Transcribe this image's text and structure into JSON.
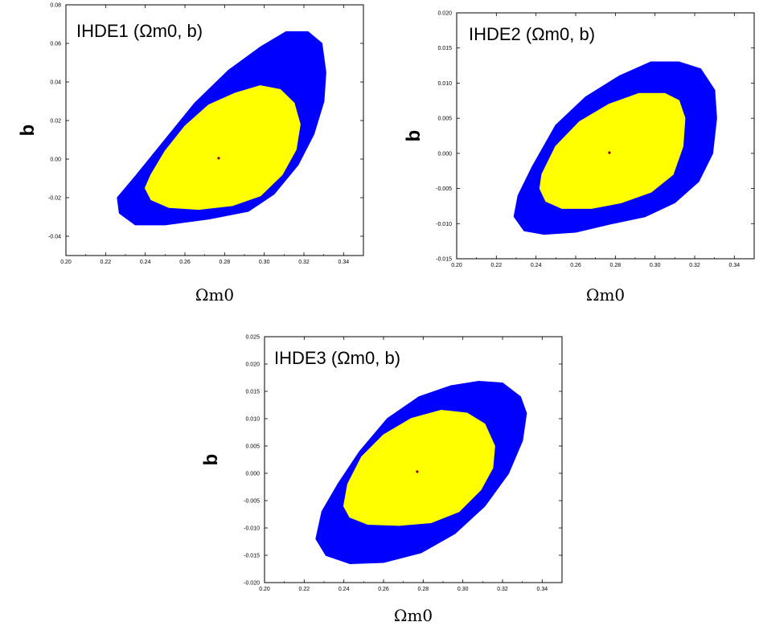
{
  "chart_data": [
    {
      "type": "contour",
      "title": "IHDE1 (Ωm0, b)",
      "title_main": "IHDE1",
      "title_params": "(Ωm0, b)",
      "xlabel": "Ωm0",
      "ylabel": "b",
      "xlim": [
        0.2,
        0.35
      ],
      "ylim": [
        -0.05,
        0.08
      ],
      "x_ticks": [
        "0.20",
        "0.22",
        "0.24",
        "0.26",
        "0.28",
        "0.30",
        "0.32",
        "0.34"
      ],
      "y_ticks": [
        "-0.04",
        "-0.02",
        "0.00",
        "0.02",
        "0.04",
        "0.06",
        "0.08"
      ],
      "best_fit": {
        "x": 0.277,
        "y": 0.0005
      },
      "regions": [
        {
          "level": "outer",
          "color": "#0000ff",
          "points": [
            [
              0.226,
              -0.02
            ],
            [
              0.235,
              -0.009
            ],
            [
              0.25,
              0.01
            ],
            [
              0.265,
              0.029
            ],
            [
              0.282,
              0.046
            ],
            [
              0.298,
              0.058
            ],
            [
              0.311,
              0.066
            ],
            [
              0.322,
              0.066
            ],
            [
              0.329,
              0.06
            ],
            [
              0.331,
              0.045
            ],
            [
              0.33,
              0.03
            ],
            [
              0.325,
              0.013
            ],
            [
              0.317,
              -0.003
            ],
            [
              0.305,
              -0.018
            ],
            [
              0.292,
              -0.027
            ],
            [
              0.272,
              -0.031
            ],
            [
              0.25,
              -0.034
            ],
            [
              0.235,
              -0.034
            ],
            [
              0.227,
              -0.028
            ]
          ]
        },
        {
          "level": "inner",
          "color": "#ffff00",
          "points": [
            [
              0.24,
              -0.015
            ],
            [
              0.243,
              -0.008
            ],
            [
              0.25,
              0.004
            ],
            [
              0.26,
              0.017
            ],
            [
              0.272,
              0.028
            ],
            [
              0.285,
              0.034
            ],
            [
              0.298,
              0.038
            ],
            [
              0.308,
              0.036
            ],
            [
              0.315,
              0.029
            ],
            [
              0.318,
              0.018
            ],
            [
              0.316,
              0.005
            ],
            [
              0.309,
              -0.008
            ],
            [
              0.298,
              -0.019
            ],
            [
              0.284,
              -0.024
            ],
            [
              0.267,
              -0.026
            ],
            [
              0.252,
              -0.025
            ],
            [
              0.243,
              -0.021
            ]
          ]
        }
      ]
    },
    {
      "type": "contour",
      "title": "IHDE2 (Ωm0, b)",
      "title_main": "IHDE2",
      "title_params": "(Ωm0, b)",
      "xlabel": "Ωm0",
      "ylabel": "b",
      "xlim": [
        0.2,
        0.35
      ],
      "ylim": [
        -0.015,
        0.02
      ],
      "x_ticks": [
        "0.20",
        "0.22",
        "0.24",
        "0.26",
        "0.28",
        "0.30",
        "0.32",
        "0.34"
      ],
      "y_ticks": [
        "-0.015",
        "-0.010",
        "-0.005",
        "0.000",
        "0.005",
        "0.010",
        "0.015",
        "0.020"
      ],
      "best_fit": {
        "x": 0.277,
        "y": 0.0001
      },
      "regions": [
        {
          "level": "outer",
          "color": "#0000ff",
          "points": [
            [
              0.229,
              -0.009
            ],
            [
              0.231,
              -0.006
            ],
            [
              0.238,
              -0.002
            ],
            [
              0.25,
              0.004
            ],
            [
              0.265,
              0.008
            ],
            [
              0.282,
              0.011
            ],
            [
              0.298,
              0.013
            ],
            [
              0.312,
              0.013
            ],
            [
              0.323,
              0.012
            ],
            [
              0.33,
              0.009
            ],
            [
              0.331,
              0.005
            ],
            [
              0.329,
              0.0
            ],
            [
              0.322,
              -0.004
            ],
            [
              0.31,
              -0.007
            ],
            [
              0.295,
              -0.009
            ],
            [
              0.278,
              -0.01
            ],
            [
              0.26,
              -0.0112
            ],
            [
              0.244,
              -0.0115
            ],
            [
              0.234,
              -0.011
            ]
          ]
        },
        {
          "level": "inner",
          "color": "#ffff00",
          "points": [
            [
              0.242,
              -0.005
            ],
            [
              0.243,
              -0.003
            ],
            [
              0.25,
              0.001
            ],
            [
              0.262,
              0.0045
            ],
            [
              0.277,
              0.007
            ],
            [
              0.292,
              0.0085
            ],
            [
              0.305,
              0.0085
            ],
            [
              0.312,
              0.0075
            ],
            [
              0.315,
              0.005
            ],
            [
              0.314,
              0.001
            ],
            [
              0.309,
              -0.003
            ],
            [
              0.298,
              -0.0055
            ],
            [
              0.283,
              -0.007
            ],
            [
              0.268,
              -0.0078
            ],
            [
              0.253,
              -0.0078
            ],
            [
              0.245,
              -0.0068
            ]
          ]
        }
      ]
    },
    {
      "type": "contour",
      "title": "IHDE3 (Ωm0, b)",
      "title_main": "IHDE3",
      "title_params": "(Ωm0, b)",
      "xlabel": "Ωm0",
      "ylabel": "b",
      "xlim": [
        0.2,
        0.35
      ],
      "ylim": [
        -0.02,
        0.025
      ],
      "x_ticks": [
        "0.20",
        "0.22",
        "0.24",
        "0.26",
        "0.28",
        "0.30",
        "0.32",
        "0.34"
      ],
      "y_ticks": [
        "-0.020",
        "-0.015",
        "-0.010",
        "-0.005",
        "0.000",
        "0.005",
        "0.010",
        "0.015",
        "0.020",
        "0.025"
      ],
      "best_fit": {
        "x": 0.277,
        "y": 0.0003
      },
      "regions": [
        {
          "level": "outer",
          "color": "#0000ff",
          "points": [
            [
              0.226,
              -0.012
            ],
            [
              0.229,
              -0.007
            ],
            [
              0.237,
              -0.002
            ],
            [
              0.248,
              0.004
            ],
            [
              0.262,
              0.01
            ],
            [
              0.278,
              0.014
            ],
            [
              0.294,
              0.016
            ],
            [
              0.308,
              0.0168
            ],
            [
              0.32,
              0.0165
            ],
            [
              0.329,
              0.014
            ],
            [
              0.332,
              0.011
            ],
            [
              0.33,
              0.006
            ],
            [
              0.323,
              0.0
            ],
            [
              0.311,
              -0.006
            ],
            [
              0.296,
              -0.011
            ],
            [
              0.279,
              -0.0145
            ],
            [
              0.26,
              -0.0163
            ],
            [
              0.243,
              -0.0165
            ],
            [
              0.231,
              -0.015
            ]
          ]
        },
        {
          "level": "inner",
          "color": "#ffff00",
          "points": [
            [
              0.24,
              -0.006
            ],
            [
              0.242,
              -0.002
            ],
            [
              0.249,
              0.003
            ],
            [
              0.26,
              0.007
            ],
            [
              0.274,
              0.01
            ],
            [
              0.289,
              0.0115
            ],
            [
              0.302,
              0.011
            ],
            [
              0.311,
              0.009
            ],
            [
              0.316,
              0.005
            ],
            [
              0.315,
              0.001
            ],
            [
              0.309,
              -0.003
            ],
            [
              0.298,
              -0.007
            ],
            [
              0.284,
              -0.009
            ],
            [
              0.268,
              -0.0095
            ],
            [
              0.252,
              -0.0093
            ],
            [
              0.243,
              -0.008
            ]
          ]
        }
      ]
    }
  ]
}
